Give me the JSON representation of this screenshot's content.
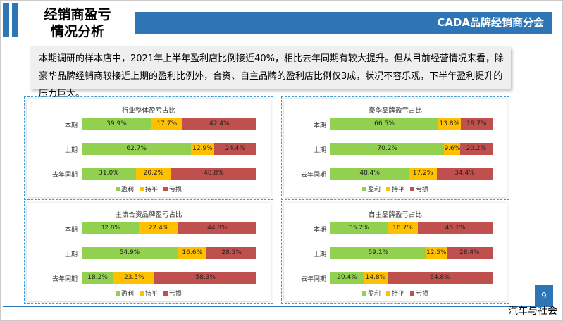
{
  "header": {
    "title_line1": "经销商盈亏",
    "title_line2": "情况分析",
    "banner": "CADA品牌经销商分会"
  },
  "summary": "本期调研的样本店中，2021年上半年盈利店比例接近40%，相比去年同期有较大提升。但从目前经营情况来看，除豪华品牌经销商较接近上期的盈利比例外，合资、自主品牌的盈利店比例仅3成，状况不容乐观，下半年盈利提升的压力巨大。",
  "colors": {
    "profit": "#92d050",
    "breakeven": "#ffc000",
    "loss": "#c0504d",
    "accent": "#2e75b6"
  },
  "chart_data": [
    {
      "type": "bar",
      "stacked": true,
      "orientation": "horizontal",
      "title": "行业整体盈亏占比",
      "categories": [
        "本期",
        "上期",
        "去年同期"
      ],
      "series": [
        {
          "name": "盈利",
          "values": [
            39.9,
            62.7,
            31.0
          ],
          "labels": [
            "39.9%",
            "62.7%",
            "31.0%"
          ]
        },
        {
          "name": "持平",
          "values": [
            17.7,
            12.9,
            20.2
          ],
          "labels": [
            "17.7%",
            "12.9%",
            "20.2%"
          ]
        },
        {
          "name": "亏损",
          "values": [
            42.4,
            24.4,
            48.8
          ],
          "labels": [
            "42.4%",
            "24.4%",
            "48.8%"
          ]
        }
      ]
    },
    {
      "type": "bar",
      "stacked": true,
      "orientation": "horizontal",
      "title": "豪华品牌盈亏占比",
      "categories": [
        "本期",
        "上期",
        "去年同期"
      ],
      "series": [
        {
          "name": "盈利",
          "values": [
            66.5,
            70.2,
            48.4
          ],
          "labels": [
            "66.5%",
            "70.2%",
            "48.4%"
          ]
        },
        {
          "name": "持平",
          "values": [
            13.8,
            9.6,
            17.2
          ],
          "labels": [
            "13.8%",
            "9.6%",
            "17.2%"
          ]
        },
        {
          "name": "亏损",
          "values": [
            19.7,
            20.2,
            34.4
          ],
          "labels": [
            "19.7%",
            "20.2%",
            "34.4%"
          ]
        }
      ]
    },
    {
      "type": "bar",
      "stacked": true,
      "orientation": "horizontal",
      "title": "主流合资品牌盈亏占比",
      "categories": [
        "本期",
        "上期",
        "去年同期"
      ],
      "series": [
        {
          "name": "盈利",
          "values": [
            32.8,
            54.9,
            18.2
          ],
          "labels": [
            "32.8%",
            "54.9%",
            "18.2%"
          ]
        },
        {
          "name": "持平",
          "values": [
            22.4,
            16.6,
            23.5
          ],
          "labels": [
            "22.4%",
            "16.6%",
            "23.5%"
          ]
        },
        {
          "name": "亏损",
          "values": [
            44.8,
            28.5,
            58.3
          ],
          "labels": [
            "44.8%",
            "28.5%",
            "58.3%"
          ]
        }
      ]
    },
    {
      "type": "bar",
      "stacked": true,
      "orientation": "horizontal",
      "title": "自主品牌盈亏占比",
      "categories": [
        "本期",
        "上期",
        "去年同期"
      ],
      "series": [
        {
          "name": "盈利",
          "values": [
            35.2,
            59.1,
            20.4
          ],
          "labels": [
            "35.2%",
            "59.1%",
            "20.4%"
          ]
        },
        {
          "name": "持平",
          "values": [
            18.7,
            12.5,
            14.8
          ],
          "labels": [
            "18.7%",
            "12.5%",
            "14.8%"
          ]
        },
        {
          "name": "亏损",
          "values": [
            46.1,
            28.4,
            64.8
          ],
          "labels": [
            "46.1%",
            "28.4%",
            "64.8%"
          ]
        }
      ]
    }
  ],
  "footer": {
    "page_number": "9",
    "watermark": "汽车与社会"
  }
}
